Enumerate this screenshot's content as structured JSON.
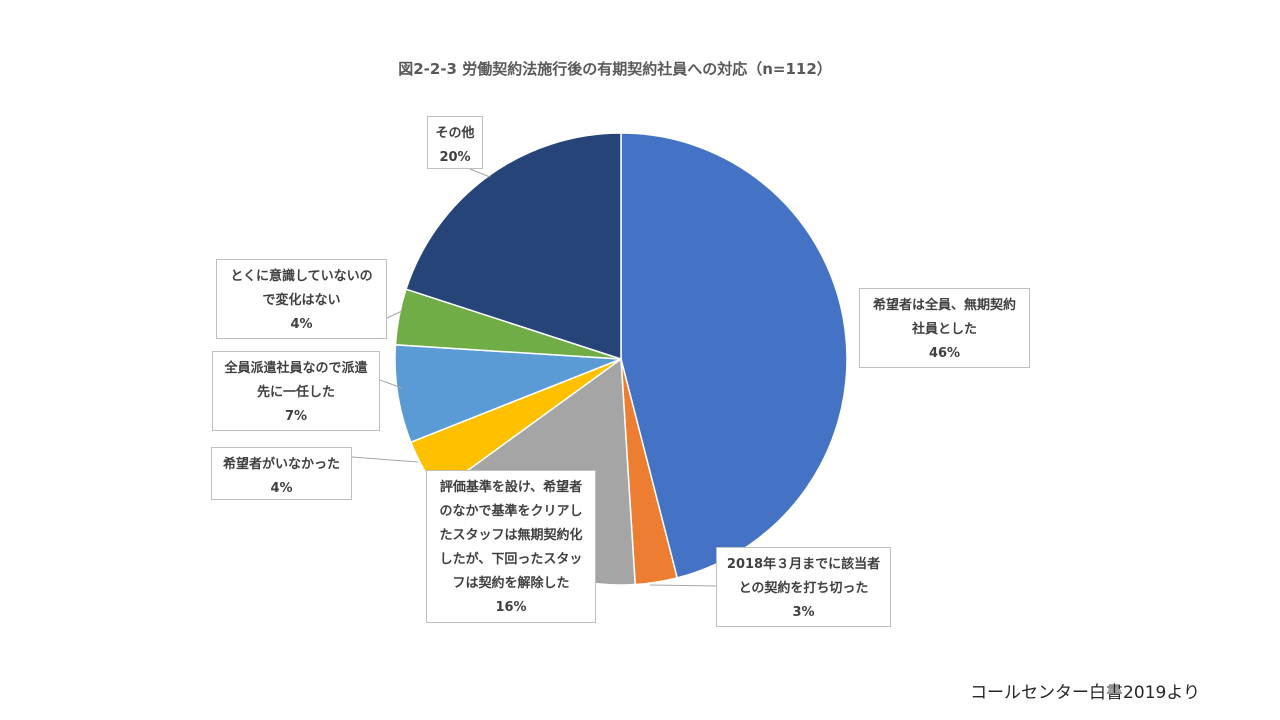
{
  "title": "図2-2-3 労働契約法施行後の有期契約社員への対応（n=112）",
  "source": "コールセンター白書2019より",
  "chart_data": {
    "type": "pie",
    "title": "図2-2-3 労働契約法施行後の有期契約社員への対応（n=112）",
    "slices": [
      {
        "label_lines": [
          "希望者は全員、無期契約",
          "社員とした"
        ],
        "value": 46,
        "pct": "46%",
        "color": "#4472C4"
      },
      {
        "label_lines": [
          "2018年３月までに該当者",
          "との契約を打ち切った"
        ],
        "value": 3,
        "pct": "3%",
        "color": "#ED7D31"
      },
      {
        "label_lines": [
          "評価基準を設け、希望者",
          "のなかで基準をクリアし",
          "たスタッフは無期契約化",
          "したが、下回ったスタッ",
          "フは契約を解除した"
        ],
        "value": 16,
        "pct": "16%",
        "color": "#A5A5A5"
      },
      {
        "label_lines": [
          "希望者がいなかった"
        ],
        "value": 4,
        "pct": "4%",
        "color": "#FFC000"
      },
      {
        "label_lines": [
          "全員派遣社員なので派遣",
          "先に一任した"
        ],
        "value": 7,
        "pct": "7%",
        "color": "#5B9BD5"
      },
      {
        "label_lines": [
          "とくに意識していないの",
          "で変化はない"
        ],
        "value": 4,
        "pct": "4%",
        "color": "#70AD47"
      },
      {
        "label_lines": [
          "その他"
        ],
        "value": 20,
        "pct": "20%",
        "color": "#264478"
      }
    ]
  }
}
